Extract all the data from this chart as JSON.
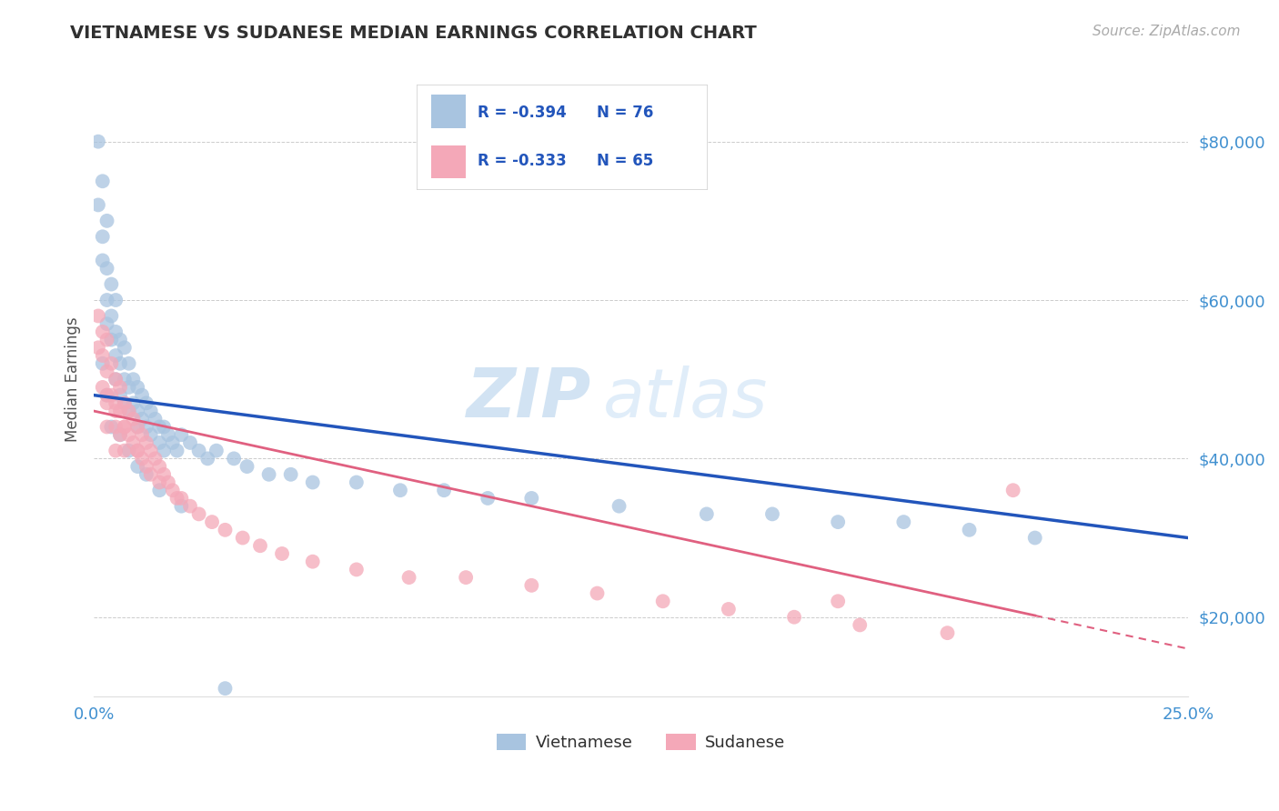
{
  "title": "VIETNAMESE VS SUDANESE MEDIAN EARNINGS CORRELATION CHART",
  "source": "Source: ZipAtlas.com",
  "ylabel": "Median Earnings",
  "xlim": [
    0.0,
    0.25
  ],
  "ylim": [
    10000,
    90000
  ],
  "yticks": [
    20000,
    40000,
    60000,
    80000
  ],
  "ytick_labels": [
    "$20,000",
    "$40,000",
    "$60,000",
    "$80,000"
  ],
  "xticks": [
    0.0,
    0.05,
    0.1,
    0.15,
    0.2,
    0.25
  ],
  "xtick_labels": [
    "0.0%",
    "",
    "",
    "",
    "",
    "25.0%"
  ],
  "legend_r1": "-0.394",
  "legend_n1": "76",
  "legend_r2": "-0.333",
  "legend_n2": "65",
  "group1_label": "Vietnamese",
  "group2_label": "Sudanese",
  "group1_color": "#a8c4e0",
  "group2_color": "#f4a8b8",
  "group1_line_color": "#2255bb",
  "group2_line_color": "#e06080",
  "background_color": "#ffffff",
  "grid_color": "#cccccc",
  "title_color": "#303030",
  "axis_label_color": "#505050",
  "tick_color": "#4090d0",
  "watermark_top": "ZIP",
  "watermark_bot": "atlas",
  "viet_intercept": 48000,
  "viet_slope": -72000,
  "sud_intercept": 46000,
  "sud_slope": -120000,
  "vietnamese_x": [
    0.001,
    0.001,
    0.002,
    0.002,
    0.002,
    0.003,
    0.003,
    0.003,
    0.003,
    0.004,
    0.004,
    0.004,
    0.005,
    0.005,
    0.005,
    0.005,
    0.006,
    0.006,
    0.006,
    0.007,
    0.007,
    0.007,
    0.008,
    0.008,
    0.008,
    0.009,
    0.009,
    0.01,
    0.01,
    0.01,
    0.011,
    0.011,
    0.012,
    0.012,
    0.013,
    0.013,
    0.014,
    0.015,
    0.015,
    0.016,
    0.016,
    0.017,
    0.018,
    0.019,
    0.02,
    0.022,
    0.024,
    0.026,
    0.028,
    0.032,
    0.035,
    0.04,
    0.045,
    0.05,
    0.06,
    0.07,
    0.08,
    0.09,
    0.1,
    0.12,
    0.14,
    0.155,
    0.17,
    0.185,
    0.2,
    0.215,
    0.002,
    0.003,
    0.004,
    0.006,
    0.008,
    0.01,
    0.012,
    0.015,
    0.02,
    0.03
  ],
  "vietnamese_y": [
    80000,
    72000,
    75000,
    68000,
    65000,
    70000,
    64000,
    60000,
    57000,
    62000,
    58000,
    55000,
    60000,
    56000,
    53000,
    50000,
    55000,
    52000,
    48000,
    54000,
    50000,
    47000,
    52000,
    49000,
    46000,
    50000,
    47000,
    49000,
    46000,
    44000,
    48000,
    45000,
    47000,
    44000,
    46000,
    43000,
    45000,
    44000,
    42000,
    44000,
    41000,
    43000,
    42000,
    41000,
    43000,
    42000,
    41000,
    40000,
    41000,
    40000,
    39000,
    38000,
    38000,
    37000,
    37000,
    36000,
    36000,
    35000,
    35000,
    34000,
    33000,
    33000,
    32000,
    32000,
    31000,
    30000,
    52000,
    48000,
    44000,
    43000,
    41000,
    39000,
    38000,
    36000,
    34000,
    11000
  ],
  "sudanese_x": [
    0.001,
    0.001,
    0.002,
    0.002,
    0.002,
    0.003,
    0.003,
    0.003,
    0.003,
    0.004,
    0.004,
    0.005,
    0.005,
    0.005,
    0.005,
    0.006,
    0.006,
    0.006,
    0.007,
    0.007,
    0.007,
    0.008,
    0.008,
    0.009,
    0.009,
    0.01,
    0.01,
    0.011,
    0.011,
    0.012,
    0.012,
    0.013,
    0.014,
    0.015,
    0.015,
    0.016,
    0.017,
    0.018,
    0.019,
    0.02,
    0.022,
    0.024,
    0.027,
    0.03,
    0.034,
    0.038,
    0.043,
    0.05,
    0.06,
    0.072,
    0.085,
    0.1,
    0.115,
    0.13,
    0.145,
    0.16,
    0.175,
    0.195,
    0.21,
    0.003,
    0.005,
    0.007,
    0.01,
    0.013,
    0.17
  ],
  "sudanese_y": [
    58000,
    54000,
    56000,
    53000,
    49000,
    55000,
    51000,
    47000,
    44000,
    52000,
    48000,
    50000,
    47000,
    44000,
    41000,
    49000,
    46000,
    43000,
    47000,
    44000,
    41000,
    46000,
    43000,
    45000,
    42000,
    44000,
    41000,
    43000,
    40000,
    42000,
    39000,
    41000,
    40000,
    39000,
    37000,
    38000,
    37000,
    36000,
    35000,
    35000,
    34000,
    33000,
    32000,
    31000,
    30000,
    29000,
    28000,
    27000,
    26000,
    25000,
    25000,
    24000,
    23000,
    22000,
    21000,
    20000,
    19000,
    18000,
    36000,
    48000,
    46000,
    44000,
    41000,
    38000,
    22000
  ]
}
